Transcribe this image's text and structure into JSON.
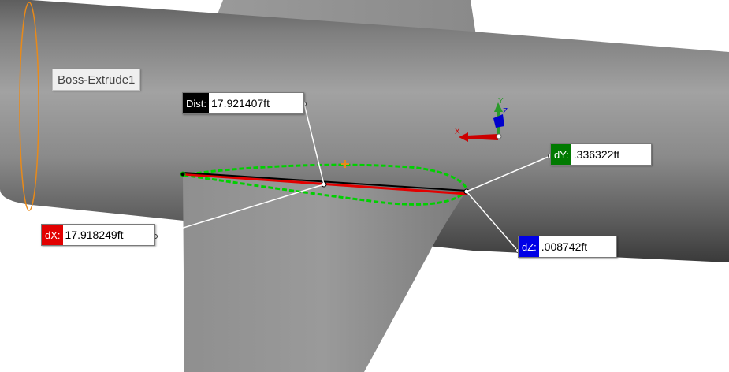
{
  "feature_label": "Boss-Extrude1",
  "measure": {
    "dist": {
      "label": "Dist:",
      "value": "17.921407ft",
      "color": "#000000"
    },
    "dx": {
      "label": "dX:",
      "value": "17.918249ft",
      "color": "#e20000"
    },
    "dy": {
      "label": "dY:",
      "value": ".336322ft",
      "color": "#007a00"
    },
    "dz": {
      "label": "dZ:",
      "value": ".008742ft",
      "color": "#0000e6"
    }
  },
  "triad": {
    "x": "X",
    "y": "Y",
    "z": "Z"
  },
  "colors": {
    "part_gray": "#8c8c8c",
    "selection_green": "#00d000",
    "sketch_orange": "#e88a1a"
  }
}
